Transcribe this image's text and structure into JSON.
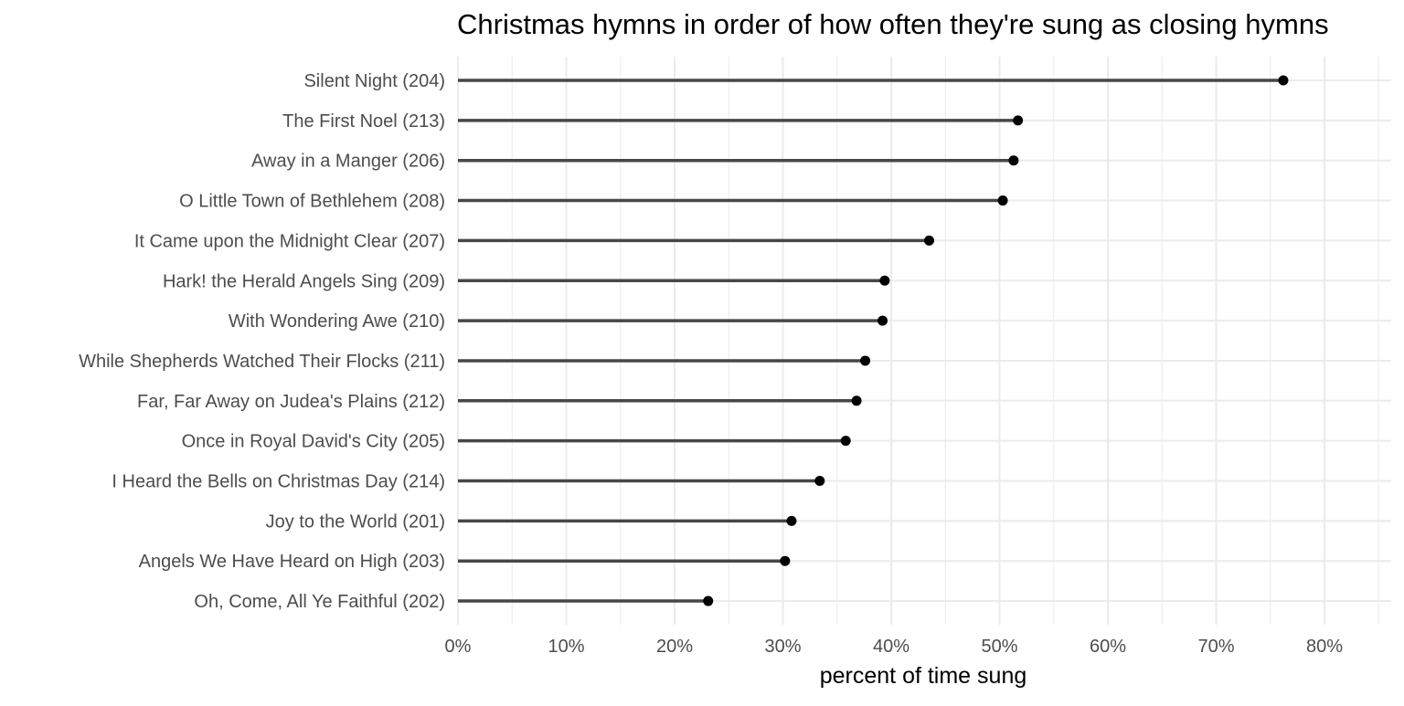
{
  "chart_data": {
    "type": "lollipop",
    "title": "Christmas hymns in order of how often they're sung as closing hymns",
    "xlabel": "percent of time sung",
    "ylabel": "",
    "xlim": [
      0,
      0.86
    ],
    "x_ticks": [
      0,
      0.1,
      0.2,
      0.3,
      0.4,
      0.5,
      0.6,
      0.7,
      0.8
    ],
    "x_tick_labels": [
      "0%",
      "10%",
      "20%",
      "30%",
      "40%",
      "50%",
      "60%",
      "70%",
      "80%"
    ],
    "grid": true,
    "legend": "none",
    "colors": {
      "stem": "#474747",
      "point": "#000000",
      "grid": "#ebebeb"
    },
    "categories": [
      "Silent Night (204)",
      "The First Noel (213)",
      "Away in a Manger (206)",
      "O Little Town of Bethlehem (208)",
      "It Came upon the Midnight Clear (207)",
      "Hark! the Herald Angels Sing (209)",
      "With Wondering Awe (210)",
      "While Shepherds Watched Their Flocks (211)",
      "Far, Far Away on Judea's Plains (212)",
      "Once in Royal David's City (205)",
      "I Heard the Bells on Christmas Day (214)",
      "Joy to the World (201)",
      "Angels We Have Heard on High (203)",
      "Oh, Come, All Ye Faithful (202)"
    ],
    "values": [
      0.762,
      0.517,
      0.513,
      0.503,
      0.435,
      0.394,
      0.392,
      0.376,
      0.368,
      0.358,
      0.334,
      0.308,
      0.302,
      0.231
    ]
  }
}
